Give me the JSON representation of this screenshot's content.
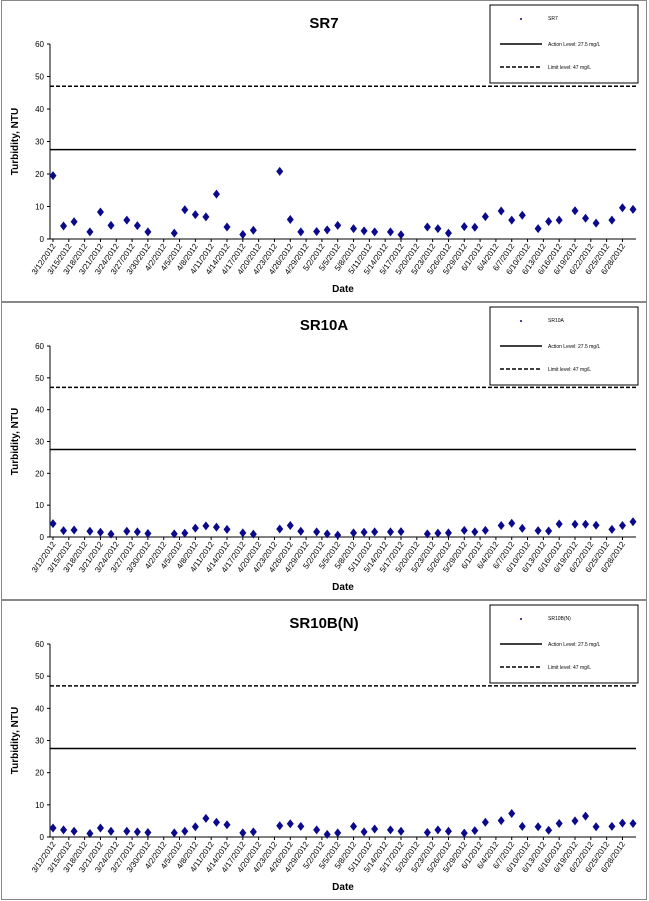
{
  "chart_data": [
    {
      "type": "scatter",
      "title": "SR7",
      "xlabel": "Date",
      "ylabel": "Turbidity, NTU",
      "ylim": [
        0,
        60
      ],
      "yticks": [
        0,
        10,
        20,
        30,
        40,
        50,
        60
      ],
      "xrange": [
        "3/12/2012",
        "6/30/2012"
      ],
      "xticks": [
        "3/12/2012",
        "3/15/2012",
        "3/18/2012",
        "3/21/2012",
        "3/24/2012",
        "3/27/2012",
        "3/30/2012",
        "4/2/2012",
        "4/5/2012",
        "4/8/2012",
        "4/11/2012",
        "4/14/2012",
        "4/17/2012",
        "4/20/2012",
        "4/23/2012",
        "4/26/2012",
        "4/29/2012",
        "5/2/2012",
        "5/5/2012",
        "5/8/2012",
        "5/11/2012",
        "5/14/2012",
        "5/17/2012",
        "5/20/2012",
        "5/23/2012",
        "5/26/2012",
        "5/29/2012",
        "6/1/2012",
        "6/4/2012",
        "6/7/2012",
        "6/10/2012",
        "6/13/2012",
        "6/16/2012",
        "6/19/2012",
        "6/22/2012",
        "6/25/2012",
        "6/28/2012"
      ],
      "legend": {
        "placement": "top-right",
        "entries": [
          "SR7",
          "Action Level: 27.5 mg/L",
          "Limit level: 47 mg/L"
        ]
      },
      "reference_lines": [
        {
          "name": "Action Level: 27.5 mg/L",
          "value": 27.5,
          "style": "solid"
        },
        {
          "name": "Limit level: 47 mg/L",
          "value": 47,
          "style": "dashed"
        }
      ],
      "series": [
        {
          "name": "SR7",
          "points": [
            [
              "3/12/2012",
              19.5
            ],
            [
              "3/14/2012",
              4
            ],
            [
              "3/16/2012",
              5.3
            ],
            [
              "3/19/2012",
              2.2
            ],
            [
              "3/21/2012",
              8.3
            ],
            [
              "3/23/2012",
              4.2
            ],
            [
              "3/26/2012",
              5.8
            ],
            [
              "3/28/2012",
              4.1
            ],
            [
              "3/30/2012",
              2.2
            ],
            [
              "4/4/2012",
              1.8
            ],
            [
              "4/6/2012",
              9
            ],
            [
              "4/8/2012",
              7.5
            ],
            [
              "4/10/2012",
              6.8
            ],
            [
              "4/12/2012",
              13.8
            ],
            [
              "4/14/2012",
              3.7
            ],
            [
              "4/17/2012",
              1.4
            ],
            [
              "4/19/2012",
              2.7
            ],
            [
              "4/24/2012",
              20.8
            ],
            [
              "4/26/2012",
              6
            ],
            [
              "4/28/2012",
              2.2
            ],
            [
              "5/1/2012",
              2.3
            ],
            [
              "5/3/2012",
              2.8
            ],
            [
              "5/5/2012",
              4.2
            ],
            [
              "5/8/2012",
              3.2
            ],
            [
              "5/10/2012",
              2.5
            ],
            [
              "5/12/2012",
              2.2
            ],
            [
              "5/15/2012",
              2.2
            ],
            [
              "5/17/2012",
              1.3
            ],
            [
              "5/22/2012",
              3.7
            ],
            [
              "5/24/2012",
              3.2
            ],
            [
              "5/26/2012",
              1.8
            ],
            [
              "5/29/2012",
              3.8
            ],
            [
              "5/31/2012",
              3.6
            ],
            [
              "6/2/2012",
              6.9
            ],
            [
              "6/5/2012",
              8.6
            ],
            [
              "6/7/2012",
              5.8
            ],
            [
              "6/9/2012",
              7.3
            ],
            [
              "6/12/2012",
              3.2
            ],
            [
              "6/14/2012",
              5.4
            ],
            [
              "6/16/2012",
              5.8
            ],
            [
              "6/19/2012",
              8.7
            ],
            [
              "6/21/2012",
              6.4
            ],
            [
              "6/23/2012",
              4.9
            ],
            [
              "6/26/2012",
              5.8
            ],
            [
              "6/28/2012",
              9.6
            ],
            [
              "6/30/2012",
              9.1
            ]
          ]
        }
      ]
    },
    {
      "type": "scatter",
      "title": "SR10A",
      "xlabel": "Date",
      "ylabel": "Turbidity, NTU",
      "ylim": [
        0,
        60
      ],
      "yticks": [
        0,
        10,
        20,
        30,
        40,
        50,
        60
      ],
      "xrange": [
        "3/12/2012",
        "6/30/2012"
      ],
      "xticks": [
        "3/12/2012",
        "3/15/2012",
        "3/18/2012",
        "3/21/2012",
        "3/24/2012",
        "3/27/2012",
        "3/30/2012",
        "4/2/2012",
        "4/5/2012",
        "4/8/2012",
        "4/11/2012",
        "4/14/2012",
        "4/17/2012",
        "4/20/2012",
        "4/23/2012",
        "4/26/2012",
        "4/29/2012",
        "5/2/2012",
        "5/5/2012",
        "5/8/2012",
        "5/11/2012",
        "5/14/2012",
        "5/17/2012",
        "5/20/2012",
        "5/23/2012",
        "5/26/2012",
        "5/29/2012",
        "6/1/2012",
        "6/4/2012",
        "6/7/2012",
        "6/10/2012",
        "6/13/2012",
        "6/16/2012",
        "6/19/2012",
        "6/22/2012",
        "6/25/2012",
        "6/28/2012"
      ],
      "legend": {
        "placement": "top-right",
        "entries": [
          "SR10A",
          "Action Level: 27.5 mg/L",
          "Limit level: 47 mg/L"
        ]
      },
      "reference_lines": [
        {
          "name": "Action Level: 27.5 mg/L",
          "value": 27.5,
          "style": "solid"
        },
        {
          "name": "Limit level: 47 mg/L",
          "value": 47,
          "style": "dashed"
        }
      ],
      "series": [
        {
          "name": "SR10A",
          "points": [
            [
              "3/12/2012",
              4.2
            ],
            [
              "3/14/2012",
              2
            ],
            [
              "3/16/2012",
              2.2
            ],
            [
              "3/19/2012",
              1.8
            ],
            [
              "3/21/2012",
              1.5
            ],
            [
              "3/23/2012",
              0.9
            ],
            [
              "3/26/2012",
              1.8
            ],
            [
              "3/28/2012",
              1.6
            ],
            [
              "3/30/2012",
              1.1
            ],
            [
              "4/4/2012",
              1
            ],
            [
              "4/6/2012",
              1.2
            ],
            [
              "4/8/2012",
              2.8
            ],
            [
              "4/10/2012",
              3.5
            ],
            [
              "4/12/2012",
              3.1
            ],
            [
              "4/14/2012",
              2.4
            ],
            [
              "4/17/2012",
              1.3
            ],
            [
              "4/19/2012",
              0.9
            ],
            [
              "4/24/2012",
              2.5
            ],
            [
              "4/26/2012",
              3.6
            ],
            [
              "4/28/2012",
              1.8
            ],
            [
              "5/1/2012",
              1.6
            ],
            [
              "5/3/2012",
              1
            ],
            [
              "5/5/2012",
              0.6
            ],
            [
              "5/8/2012",
              1.3
            ],
            [
              "5/10/2012",
              1.5
            ],
            [
              "5/12/2012",
              1.6
            ],
            [
              "5/15/2012",
              1.6
            ],
            [
              "5/17/2012",
              1.7
            ],
            [
              "5/22/2012",
              1
            ],
            [
              "5/24/2012",
              1.2
            ],
            [
              "5/26/2012",
              1.3
            ],
            [
              "5/29/2012",
              2.1
            ],
            [
              "5/31/2012",
              1.6
            ],
            [
              "6/2/2012",
              2.1
            ],
            [
              "6/5/2012",
              3.6
            ],
            [
              "6/7/2012",
              4.3
            ],
            [
              "6/9/2012",
              2.7
            ],
            [
              "6/12/2012",
              2
            ],
            [
              "6/14/2012",
              1.9
            ],
            [
              "6/16/2012",
              4.1
            ],
            [
              "6/19/2012",
              4
            ],
            [
              "6/21/2012",
              4
            ],
            [
              "6/23/2012",
              3.7
            ],
            [
              "6/26/2012",
              2.4
            ],
            [
              "6/28/2012",
              3.6
            ],
            [
              "6/30/2012",
              4.8
            ]
          ]
        }
      ]
    },
    {
      "type": "scatter",
      "title": "SR10B(N)",
      "xlabel": "Date",
      "ylabel": "Turbidity, NTU",
      "ylim": [
        0,
        60
      ],
      "yticks": [
        0,
        10,
        20,
        30,
        40,
        50,
        60
      ],
      "xrange": [
        "3/12/2012",
        "6/30/2012"
      ],
      "xticks": [
        "3/12/2012",
        "3/15/2012",
        "3/18/2012",
        "3/21/2012",
        "3/24/2012",
        "3/27/2012",
        "3/30/2012",
        "4/2/2012",
        "4/5/2012",
        "4/8/2012",
        "4/11/2012",
        "4/14/2012",
        "4/17/2012",
        "4/20/2012",
        "4/23/2012",
        "4/26/2012",
        "4/29/2012",
        "5/2/2012",
        "5/5/2012",
        "5/8/2012",
        "5/11/2012",
        "5/14/2012",
        "5/17/2012",
        "5/20/2012",
        "5/23/2012",
        "5/26/2012",
        "5/29/2012",
        "6/1/2012",
        "6/4/2012",
        "6/7/2012",
        "6/10/2012",
        "6/13/2012",
        "6/16/2012",
        "6/19/2012",
        "6/22/2012",
        "6/25/2012",
        "6/28/2012"
      ],
      "legend": {
        "placement": "top-right",
        "entries": [
          "SR10B(N)",
          "Action Level: 27.5 mg/L",
          "Limit level: 47 mg/L"
        ]
      },
      "reference_lines": [
        {
          "name": "Action Level: 27.5 mg/L",
          "value": 27.5,
          "style": "solid"
        },
        {
          "name": "Limit level: 47 mg/L",
          "value": 47,
          "style": "dashed"
        }
      ],
      "series": [
        {
          "name": "SR10B(N)",
          "points": [
            [
              "3/12/2012",
              2.8
            ],
            [
              "3/14/2012",
              2.2
            ],
            [
              "3/16/2012",
              1.8
            ],
            [
              "3/19/2012",
              1.1
            ],
            [
              "3/21/2012",
              2.8
            ],
            [
              "3/23/2012",
              1.8
            ],
            [
              "3/26/2012",
              1.8
            ],
            [
              "3/28/2012",
              1.6
            ],
            [
              "3/30/2012",
              1.4
            ],
            [
              "4/4/2012",
              1.3
            ],
            [
              "4/6/2012",
              1.8
            ],
            [
              "4/8/2012",
              3.2
            ],
            [
              "4/10/2012",
              5.8
            ],
            [
              "4/12/2012",
              4.6
            ],
            [
              "4/14/2012",
              3.8
            ],
            [
              "4/17/2012",
              1.3
            ],
            [
              "4/19/2012",
              1.6
            ],
            [
              "4/24/2012",
              3.5
            ],
            [
              "4/26/2012",
              4.1
            ],
            [
              "4/28/2012",
              3.3
            ],
            [
              "5/1/2012",
              2.2
            ],
            [
              "5/3/2012",
              0.8
            ],
            [
              "5/5/2012",
              1.3
            ],
            [
              "5/8/2012",
              3.3
            ],
            [
              "5/10/2012",
              1.6
            ],
            [
              "5/12/2012",
              2.5
            ],
            [
              "5/15/2012",
              2.2
            ],
            [
              "5/17/2012",
              1.8
            ],
            [
              "5/22/2012",
              1.4
            ],
            [
              "5/24/2012",
              2.2
            ],
            [
              "5/26/2012",
              1.8
            ],
            [
              "5/29/2012",
              1.2
            ],
            [
              "5/31/2012",
              2
            ],
            [
              "6/2/2012",
              4.6
            ],
            [
              "6/5/2012",
              5.1
            ],
            [
              "6/7/2012",
              7.3
            ],
            [
              "6/9/2012",
              3.3
            ],
            [
              "6/12/2012",
              3.2
            ],
            [
              "6/14/2012",
              2.1
            ],
            [
              "6/16/2012",
              4.2
            ],
            [
              "6/19/2012",
              5
            ],
            [
              "6/21/2012",
              6.5
            ],
            [
              "6/23/2012",
              3.2
            ],
            [
              "6/26/2012",
              3.3
            ],
            [
              "6/28/2012",
              4.3
            ],
            [
              "6/30/2012",
              4.2
            ]
          ]
        }
      ]
    }
  ],
  "colors": {
    "marker": "#0a0a8a",
    "line": "#000000",
    "border": "#888888"
  }
}
